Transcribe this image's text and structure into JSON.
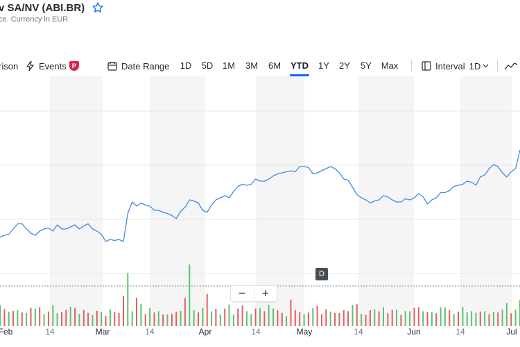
{
  "header": {
    "title": "v SA/NV (ABI.BR)",
    "subtitle": "ce. Currency in EUR",
    "star_icon": "star-icon"
  },
  "toolbar": {
    "comparison_label": "rison",
    "events_label": "Events",
    "events_badge": "P",
    "date_range_label": "Date Range",
    "ranges": [
      "1D",
      "5D",
      "1M",
      "3M",
      "6M",
      "YTD",
      "1Y",
      "2Y",
      "5Y",
      "Max"
    ],
    "active_range": "YTD",
    "interval_label": "Interval",
    "interval_value": "1D",
    "chart_type_icon": "line-chart-icon"
  },
  "controls": {
    "zoom_out": "−",
    "zoom_in": "+",
    "marker_badge": "D"
  },
  "x_labels": [
    "Feb",
    "14",
    "Mar",
    "14",
    "Apr",
    "14",
    "May",
    "14",
    "Jun",
    "14",
    "Jul"
  ],
  "chart_data": {
    "type": "line",
    "title": "",
    "xlabel": "",
    "ylabel": "",
    "x_ticks": [
      "Feb",
      "14",
      "Mar",
      "14",
      "Apr",
      "14",
      "May",
      "14",
      "Jun",
      "14",
      "Jul"
    ],
    "price_series_color": "#3e8ae6",
    "price_relative": [
      0.12,
      0.14,
      0.15,
      0.2,
      0.25,
      0.25,
      0.2,
      0.16,
      0.14,
      0.18,
      0.2,
      0.21,
      0.18,
      0.24,
      0.2,
      0.2,
      0.22,
      0.24,
      0.2,
      0.23,
      0.25,
      0.2,
      0.18,
      0.15,
      0.08,
      0.1,
      0.09,
      0.1,
      0.08,
      0.35,
      0.46,
      0.42,
      0.45,
      0.43,
      0.42,
      0.38,
      0.38,
      0.36,
      0.35,
      0.33,
      0.3,
      0.37,
      0.41,
      0.48,
      0.47,
      0.45,
      0.38,
      0.36,
      0.43,
      0.48,
      0.5,
      0.52,
      0.5,
      0.56,
      0.61,
      0.63,
      0.62,
      0.63,
      0.68,
      0.66,
      0.66,
      0.68,
      0.71,
      0.73,
      0.74,
      0.75,
      0.76,
      0.75,
      0.8,
      0.8,
      0.79,
      0.73,
      0.74,
      0.76,
      0.78,
      0.8,
      0.78,
      0.74,
      0.68,
      0.67,
      0.6,
      0.53,
      0.5,
      0.48,
      0.45,
      0.47,
      0.48,
      0.52,
      0.51,
      0.48,
      0.46,
      0.46,
      0.49,
      0.48,
      0.5,
      0.54,
      0.51,
      0.44,
      0.48,
      0.5,
      0.55,
      0.55,
      0.57,
      0.61,
      0.62,
      0.63,
      0.66,
      0.65,
      0.62,
      0.7,
      0.72,
      0.78,
      0.82,
      0.8,
      0.74,
      0.7,
      0.75,
      0.78,
      0.96
    ],
    "volume_relative": [
      0.64,
      0.51,
      0.43,
      0.46,
      0.48,
      0.41,
      0.4,
      0.55,
      0.53,
      0.57,
      0.36,
      0.44,
      0.63,
      0.39,
      0.43,
      0.49,
      0.58,
      0.55,
      0.37,
      0.49,
      0.4,
      0.34,
      0.46,
      0.42,
      0.31,
      0.5,
      0.43,
      0.4,
      0.9,
      1.6,
      0.45,
      0.85,
      0.67,
      0.37,
      0.54,
      0.41,
      0.45,
      0.35,
      0.35,
      0.37,
      0.43,
      0.46,
      0.85,
      1.85,
      0.48,
      0.41,
      0.55,
      0.97,
      0.44,
      0.52,
      0.35,
      0.53,
      0.65,
      0.35,
      0.53,
      0.62,
      0.45,
      0.36,
      0.53,
      0.54,
      0.45,
      0.64,
      0.53,
      0.48,
      0.4,
      0.3,
      0.8,
      0.48,
      0.42,
      0.36,
      0.41,
      0.54,
      0.61,
      0.36,
      0.51,
      0.44,
      0.4,
      0.4,
      0.48,
      0.45,
      0.64,
      0.66,
      0.37,
      0.34,
      0.48,
      0.51,
      0.45,
      0.57,
      0.39,
      0.49,
      0.5,
      0.34,
      0.45,
      0.45,
      0.55,
      0.57,
      0.45,
      0.42,
      0.43,
      0.39,
      0.57,
      0.57,
      0.48,
      0.37,
      0.44,
      0.58,
      0.41,
      0.45,
      0.4,
      0.44,
      0.45,
      0.36,
      0.43,
      0.41,
      0.5,
      0.69,
      0.39,
      0.5,
      0.78
    ],
    "volume_up": [
      true,
      false,
      true,
      false,
      true,
      false,
      true,
      false,
      true,
      false,
      true,
      false,
      true,
      true,
      false,
      false,
      true,
      false,
      true,
      false,
      false,
      true,
      false,
      true,
      false,
      true,
      false,
      false,
      false,
      true,
      true,
      false,
      true,
      false,
      true,
      false,
      true,
      false,
      true,
      false,
      false,
      true,
      false,
      true,
      true,
      false,
      true,
      false,
      true,
      false,
      true,
      false,
      true,
      true,
      false,
      false,
      true,
      true,
      false,
      true,
      false,
      true,
      true,
      false,
      false,
      true,
      false,
      false,
      false,
      true,
      false,
      true,
      false,
      false,
      false,
      true,
      false,
      false,
      false,
      false,
      true,
      false,
      true,
      false,
      false,
      true,
      false,
      true,
      false,
      false,
      true,
      false,
      true,
      true,
      false,
      false,
      true,
      false,
      true,
      false,
      true,
      true,
      false,
      true,
      false,
      true,
      true,
      true,
      true,
      false,
      true,
      false,
      true,
      false,
      true,
      true,
      false,
      true,
      true
    ],
    "up_color": "#5cc26a",
    "down_color": "#e65d5d"
  }
}
